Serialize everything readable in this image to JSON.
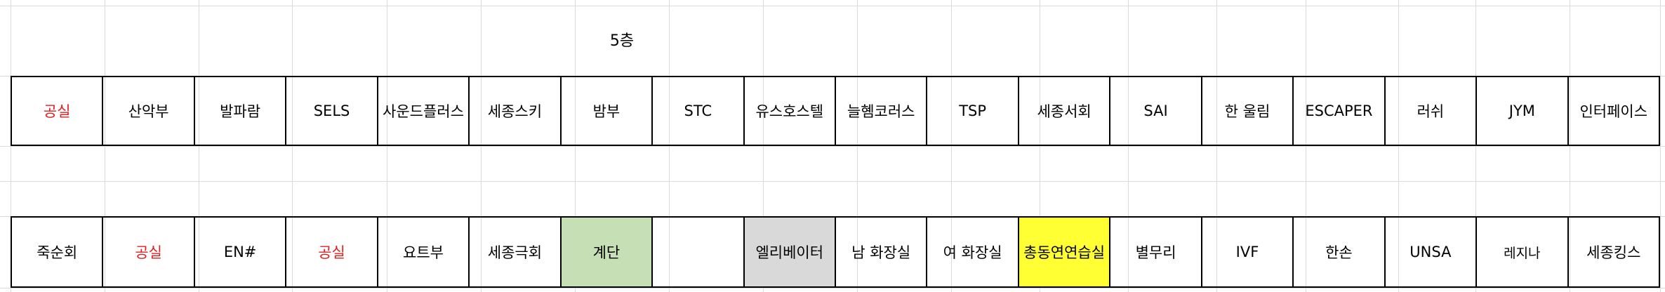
{
  "floor": "5층",
  "top_row": [
    {
      "label": "공실",
      "color": "#e02020"
    },
    {
      "label": "산악부"
    },
    {
      "label": "발파람"
    },
    {
      "label": "SELS"
    },
    {
      "label": "사운드플러스"
    },
    {
      "label": "세종스키"
    },
    {
      "label": "밤부"
    },
    {
      "label": "STC"
    },
    {
      "label": "유스호스텔"
    },
    {
      "label": "늘혬코러스"
    },
    {
      "label": "TSP"
    },
    {
      "label": "세종서회"
    },
    {
      "label": "SAI"
    },
    {
      "label": "한 울림"
    },
    {
      "label": "ESCAPER"
    },
    {
      "label": "러쉬"
    },
    {
      "label": "JYM"
    },
    {
      "label": "인터페이스"
    }
  ],
  "bottom_row": [
    {
      "label": "죽순회"
    },
    {
      "label": "공실",
      "color": "#e02020"
    },
    {
      "label": "EN#"
    },
    {
      "label": "공실",
      "color": "#e02020"
    },
    {
      "label": "요트부"
    },
    {
      "label": "세종극회"
    },
    {
      "label": "계단",
      "fill": "#c6dfb4"
    },
    {
      "label": ""
    },
    {
      "label": "엘리베이터",
      "fill": "#d9d9d9"
    },
    {
      "label": "남 화장실"
    },
    {
      "label": "여 화장실"
    },
    {
      "label": "총동연연습실",
      "fill": "#ffff33"
    },
    {
      "label": "별무리"
    },
    {
      "label": "IVF"
    },
    {
      "label": "한손"
    },
    {
      "label": "UNSA"
    },
    {
      "label": "레지나"
    },
    {
      "label": "세종킹스"
    }
  ]
}
